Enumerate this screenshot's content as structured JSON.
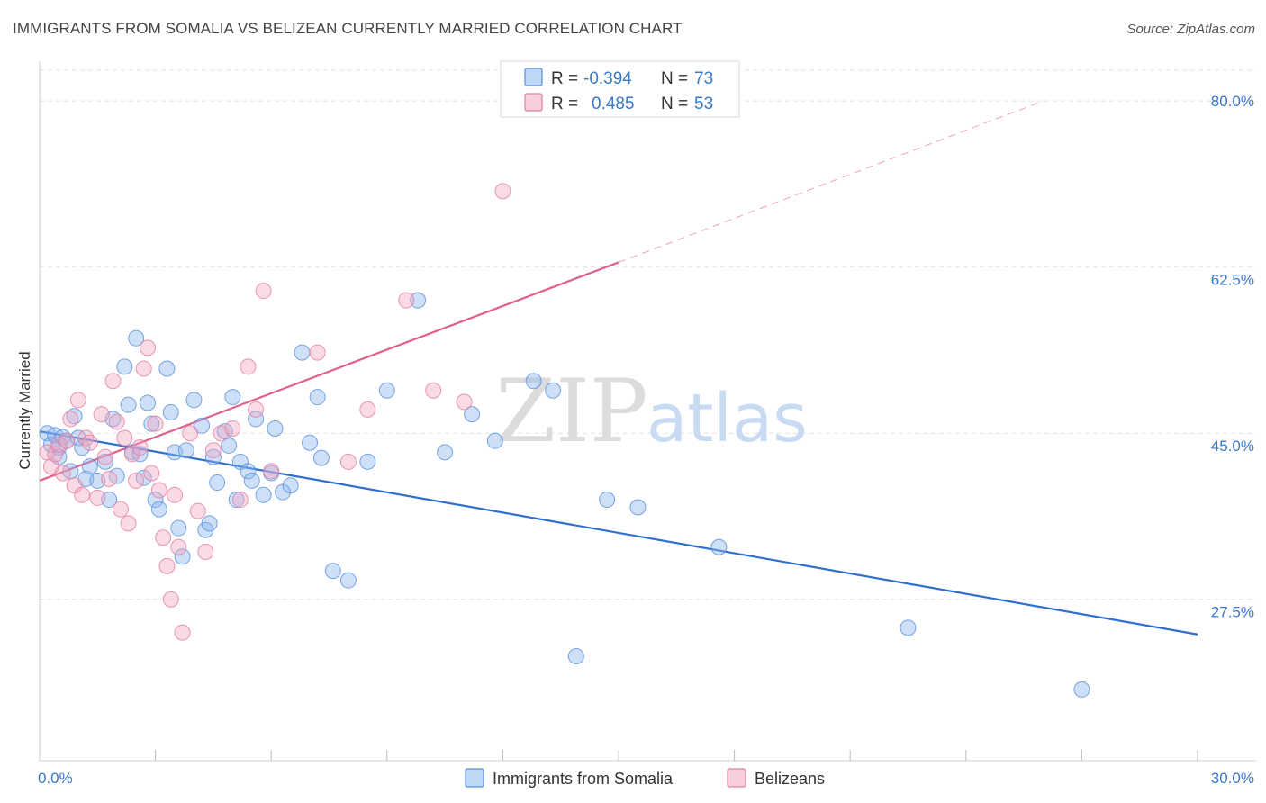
{
  "title": "IMMIGRANTS FROM SOMALIA VS BELIZEAN CURRENTLY MARRIED CORRELATION CHART",
  "source": "Source: ZipAtlas.com",
  "watermark": {
    "zip": "ZIP",
    "atlas": "atlas"
  },
  "legend": {
    "rows": [
      {
        "r_label": "R =",
        "r_value": "-0.394",
        "n_label": "N =",
        "n_value": "73",
        "color": "#8ab4ef"
      },
      {
        "r_label": "R =",
        "r_value": "0.485",
        "n_label": "N =",
        "n_value": "53",
        "color": "#f4a6c0"
      }
    ]
  },
  "chart_data": {
    "type": "scatter",
    "ylabel": "Currently Married",
    "xlim": [
      0,
      30
    ],
    "ylim": [
      10.5,
      84
    ],
    "y_ticks": [
      {
        "value": 27.5,
        "label": "27.5%"
      },
      {
        "value": 45.0,
        "label": "45.0%"
      },
      {
        "value": 62.5,
        "label": "62.5%"
      },
      {
        "value": 80.0,
        "label": "80.0%"
      }
    ],
    "x_tick_labels": [
      {
        "value": 0,
        "label": "0.0%"
      },
      {
        "value": 30,
        "label": "30.0%"
      }
    ],
    "x_minor_ticks": [
      3,
      6,
      9,
      12,
      15,
      18,
      21,
      24,
      27,
      30
    ],
    "grid": true,
    "series": [
      {
        "name": "Immigrants from Somalia",
        "color": "#8ab4ef",
        "stroke": "#5b8fd9",
        "trend": {
          "x": [
            0,
            30
          ],
          "y": [
            45.2,
            23.8
          ],
          "color": "#2f6fd0"
        },
        "points": [
          [
            0.2,
            45.0
          ],
          [
            0.3,
            43.8
          ],
          [
            0.4,
            44.8
          ],
          [
            0.5,
            43.5
          ],
          [
            0.5,
            42.5
          ],
          [
            0.6,
            44.6
          ],
          [
            0.7,
            44.2
          ],
          [
            0.8,
            41.0
          ],
          [
            0.9,
            46.8
          ],
          [
            1.0,
            44.5
          ],
          [
            1.1,
            43.5
          ],
          [
            1.2,
            40.2
          ],
          [
            1.3,
            41.5
          ],
          [
            1.5,
            40.0
          ],
          [
            1.7,
            42.0
          ],
          [
            1.8,
            38.0
          ],
          [
            1.9,
            46.5
          ],
          [
            2.0,
            40.5
          ],
          [
            2.2,
            52.0
          ],
          [
            2.3,
            48.0
          ],
          [
            2.4,
            43.0
          ],
          [
            2.5,
            55.0
          ],
          [
            2.6,
            42.8
          ],
          [
            2.7,
            40.3
          ],
          [
            2.8,
            48.2
          ],
          [
            2.9,
            46.0
          ],
          [
            3.0,
            38.0
          ],
          [
            3.1,
            37.0
          ],
          [
            3.3,
            51.8
          ],
          [
            3.4,
            47.2
          ],
          [
            3.5,
            43.0
          ],
          [
            3.6,
            35.0
          ],
          [
            3.7,
            32.0
          ],
          [
            3.8,
            43.2
          ],
          [
            4.0,
            48.5
          ],
          [
            4.2,
            45.8
          ],
          [
            4.3,
            34.8
          ],
          [
            4.4,
            35.5
          ],
          [
            4.5,
            42.5
          ],
          [
            4.6,
            39.8
          ],
          [
            4.8,
            45.2
          ],
          [
            4.9,
            43.7
          ],
          [
            5.0,
            48.8
          ],
          [
            5.1,
            38.0
          ],
          [
            5.2,
            42.0
          ],
          [
            5.4,
            41.0
          ],
          [
            5.5,
            40.0
          ],
          [
            5.6,
            46.5
          ],
          [
            5.8,
            38.5
          ],
          [
            6.0,
            40.8
          ],
          [
            6.1,
            45.5
          ],
          [
            6.3,
            38.8
          ],
          [
            6.5,
            39.5
          ],
          [
            6.8,
            53.5
          ],
          [
            7.0,
            44.0
          ],
          [
            7.2,
            48.8
          ],
          [
            7.3,
            42.4
          ],
          [
            7.6,
            30.5
          ],
          [
            8.0,
            29.5
          ],
          [
            8.5,
            42.0
          ],
          [
            9.0,
            49.5
          ],
          [
            9.8,
            59.0
          ],
          [
            10.5,
            43.0
          ],
          [
            11.2,
            47.0
          ],
          [
            11.8,
            44.2
          ],
          [
            12.8,
            50.5
          ],
          [
            13.3,
            49.5
          ],
          [
            13.9,
            21.5
          ],
          [
            14.7,
            38.0
          ],
          [
            15.5,
            37.2
          ],
          [
            17.6,
            33.0
          ],
          [
            22.5,
            24.5
          ],
          [
            27.0,
            18.0
          ]
        ]
      },
      {
        "name": "Belizeans",
        "color": "#f4a6c0",
        "stroke": "#e080a0",
        "trend": {
          "x": [
            0,
            15
          ],
          "y": [
            40.0,
            63.0
          ],
          "color": "#e0608a"
        },
        "trend_ext": {
          "x": [
            15,
            26
          ],
          "y": [
            63.0,
            80.0
          ]
        },
        "points": [
          [
            0.2,
            43.0
          ],
          [
            0.3,
            41.5
          ],
          [
            0.4,
            42.8
          ],
          [
            0.5,
            43.8
          ],
          [
            0.6,
            40.8
          ],
          [
            0.7,
            44.2
          ],
          [
            0.8,
            46.5
          ],
          [
            0.9,
            39.5
          ],
          [
            1.0,
            48.5
          ],
          [
            1.1,
            38.5
          ],
          [
            1.2,
            44.5
          ],
          [
            1.3,
            44.0
          ],
          [
            1.5,
            38.2
          ],
          [
            1.6,
            47.0
          ],
          [
            1.7,
            42.5
          ],
          [
            1.8,
            40.2
          ],
          [
            1.9,
            50.5
          ],
          [
            2.0,
            46.2
          ],
          [
            2.1,
            37.0
          ],
          [
            2.2,
            44.5
          ],
          [
            2.3,
            35.5
          ],
          [
            2.4,
            42.8
          ],
          [
            2.5,
            40.0
          ],
          [
            2.6,
            43.5
          ],
          [
            2.7,
            51.8
          ],
          [
            2.8,
            54.0
          ],
          [
            2.9,
            40.8
          ],
          [
            3.0,
            46.0
          ],
          [
            3.1,
            39.0
          ],
          [
            3.2,
            34.0
          ],
          [
            3.3,
            31.0
          ],
          [
            3.4,
            27.5
          ],
          [
            3.5,
            38.5
          ],
          [
            3.6,
            33.0
          ],
          [
            3.7,
            24.0
          ],
          [
            3.9,
            45.0
          ],
          [
            4.1,
            36.8
          ],
          [
            4.3,
            32.5
          ],
          [
            4.5,
            43.2
          ],
          [
            4.7,
            45.0
          ],
          [
            5.0,
            45.5
          ],
          [
            5.2,
            38.0
          ],
          [
            5.4,
            52.0
          ],
          [
            5.6,
            47.5
          ],
          [
            5.8,
            60.0
          ],
          [
            6.0,
            41.0
          ],
          [
            7.2,
            53.5
          ],
          [
            8.0,
            42.0
          ],
          [
            8.5,
            47.5
          ],
          [
            9.5,
            59.0
          ],
          [
            10.2,
            49.5
          ],
          [
            11.0,
            48.3
          ],
          [
            12.0,
            70.5
          ]
        ]
      }
    ]
  },
  "bottom_legend": [
    {
      "label": "Immigrants from Somalia",
      "color": "#8ab4ef"
    },
    {
      "label": "Belizeans",
      "color": "#f4a6c0"
    }
  ]
}
